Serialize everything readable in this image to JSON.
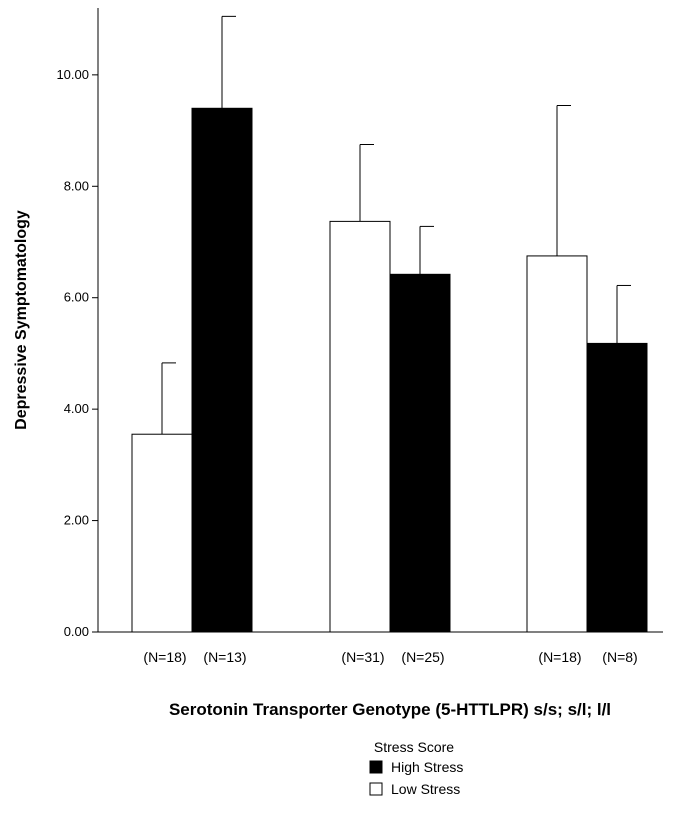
{
  "chart_data": {
    "type": "bar",
    "ylabel": "Depressive Symptomatology",
    "xlabel": "Serotonin Transporter Genotype (5-HTTLPR) s/s; s/l; l/l",
    "ylim": [
      0,
      11.2
    ],
    "yticks": [
      "0.00",
      "2.00",
      "4.00",
      "6.00",
      "8.00",
      "10.00"
    ],
    "grid": false,
    "legend": {
      "title": "Stress Score",
      "position": "bottom-center",
      "entries": [
        {
          "label": "High Stress",
          "color": "#000000"
        },
        {
          "label": "Low Stress",
          "color": "#ffffff"
        }
      ]
    },
    "groups": [
      {
        "bars": [
          {
            "series": "Low Stress",
            "value": 3.55,
            "error": 1.28,
            "n_label": "(N=18)"
          },
          {
            "series": "High Stress",
            "value": 9.4,
            "error": 1.65,
            "n_label": "(N=13)"
          }
        ]
      },
      {
        "bars": [
          {
            "series": "Low Stress",
            "value": 7.37,
            "error": 1.38,
            "n_label": "(N=31)"
          },
          {
            "series": "High Stress",
            "value": 6.42,
            "error": 0.86,
            "n_label": "(N=25)"
          }
        ]
      },
      {
        "bars": [
          {
            "series": "Low Stress",
            "value": 6.75,
            "error": 2.7,
            "n_label": "(N=18)"
          },
          {
            "series": "High Stress",
            "value": 5.18,
            "error": 1.04,
            "n_label": "(N=8)"
          }
        ]
      }
    ]
  }
}
